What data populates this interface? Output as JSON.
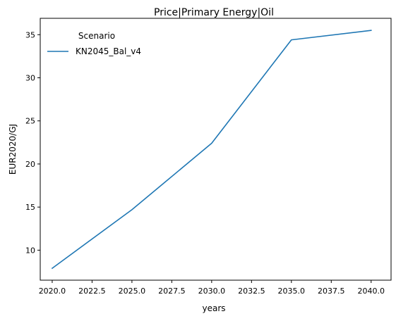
{
  "chart_data": {
    "type": "line",
    "title": "Price|Primary Energy|Oil",
    "xlabel": "years",
    "ylabel": "EUR2020/GJ",
    "x": [
      2020,
      2025,
      2030,
      2035,
      2040
    ],
    "series": [
      {
        "name": "KN2045_Bal_v4",
        "color": "#1f77b4",
        "values": [
          7.9,
          14.7,
          22.4,
          34.4,
          35.5
        ]
      }
    ],
    "xlim": [
      2019.25,
      2041.25
    ],
    "ylim": [
      6.52,
      36.9
    ],
    "xticks": [
      2020.0,
      2022.5,
      2025.0,
      2027.5,
      2030.0,
      2032.5,
      2035.0,
      2037.5,
      2040.0
    ],
    "xtick_labels": [
      "2020.0",
      "2022.5",
      "2025.0",
      "2027.5",
      "2030.0",
      "2032.5",
      "2035.0",
      "2037.5",
      "2040.0"
    ],
    "yticks": [
      10,
      15,
      20,
      25,
      30,
      35
    ],
    "ytick_labels": [
      "10",
      "15",
      "20",
      "25",
      "30",
      "35"
    ],
    "grid": false,
    "legend": {
      "title": "Scenario",
      "placement": "top-left"
    }
  }
}
